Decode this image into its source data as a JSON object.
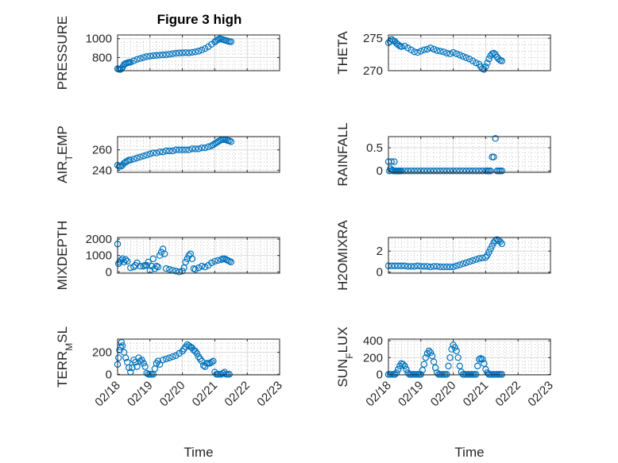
{
  "figure": {
    "title": "Figure 3 high"
  },
  "colors": {
    "series": "#0072BD",
    "axis": "#262626",
    "grid": "#d8d8d8",
    "minor_grid": "#c6c6c6"
  },
  "chart_data": [
    {
      "type": "scatter",
      "title": "Figure 3 high",
      "xlabel": "",
      "ylabel": "PRESSURE",
      "xlim": [
        "02/18",
        "02/23"
      ],
      "ylim": [
        660,
        1040
      ],
      "grid": true,
      "minor_grid": true,
      "y_ticks": [
        800,
        1000
      ],
      "y_tick_labels": [
        "800",
        "1000"
      ],
      "x": [
        0.0,
        0.04,
        0.08,
        0.12,
        0.16,
        0.2,
        0.24,
        0.28,
        0.32,
        0.36,
        0.4,
        0.5,
        0.6,
        0.7,
        0.8,
        0.9,
        1.0,
        1.1,
        1.2,
        1.3,
        1.4,
        1.5,
        1.6,
        1.7,
        1.8,
        1.9,
        2.0,
        2.1,
        2.2,
        2.3,
        2.4,
        2.5,
        2.6,
        2.7,
        2.8,
        2.9,
        3.0,
        3.05,
        3.1,
        3.15,
        3.2,
        3.25,
        3.3,
        3.35,
        3.4,
        3.45,
        3.5
      ],
      "y": [
        680,
        675,
        672,
        680,
        700,
        725,
        735,
        740,
        745,
        748,
        750,
        765,
        780,
        790,
        800,
        810,
        815,
        820,
        822,
        825,
        828,
        830,
        835,
        840,
        845,
        848,
        850,
        852,
        850,
        855,
        860,
        868,
        880,
        895,
        915,
        940,
        965,
        980,
        990,
        1000,
        995,
        990,
        985,
        980,
        975,
        970,
        968
      ]
    },
    {
      "type": "scatter",
      "title": "",
      "xlabel": "",
      "ylabel": "THETA",
      "xlim": [
        "02/18",
        "02/23"
      ],
      "ylim": [
        270,
        275.5
      ],
      "grid": true,
      "minor_grid": true,
      "y_ticks": [
        270,
        275
      ],
      "y_tick_labels": [
        "270",
        "275"
      ],
      "x": [
        0.0,
        0.05,
        0.1,
        0.15,
        0.2,
        0.25,
        0.3,
        0.35,
        0.4,
        0.5,
        0.6,
        0.7,
        0.8,
        0.9,
        1.0,
        1.1,
        1.2,
        1.3,
        1.4,
        1.5,
        1.6,
        1.7,
        1.8,
        1.9,
        2.0,
        2.1,
        2.2,
        2.3,
        2.4,
        2.5,
        2.6,
        2.7,
        2.8,
        2.85,
        2.9,
        2.95,
        3.0,
        3.05,
        3.1,
        3.15,
        3.2,
        3.25,
        3.3,
        3.35,
        3.4,
        3.45,
        3.5
      ],
      "y": [
        274.3,
        274.5,
        274.8,
        274.6,
        274.5,
        274.2,
        274.0,
        273.8,
        273.7,
        273.8,
        273.5,
        273.2,
        272.9,
        272.8,
        273.0,
        273.2,
        273.3,
        273.5,
        273.3,
        273.1,
        273.0,
        272.9,
        272.7,
        272.6,
        272.8,
        272.6,
        272.4,
        272.2,
        272.0,
        271.8,
        271.5,
        271.2,
        271.0,
        270.6,
        270.3,
        270.2,
        270.6,
        271.2,
        271.8,
        272.3,
        272.6,
        272.7,
        272.5,
        272.1,
        271.8,
        271.6,
        271.5
      ]
    },
    {
      "type": "scatter",
      "title": "",
      "xlabel": "",
      "ylabel": "AIR_TEMP",
      "ylabel_main": "AIR",
      "ylabel_sub": "T",
      "ylabel_rest": "EMP",
      "xlim": [
        "02/18",
        "02/23"
      ],
      "ylim": [
        238,
        273
      ],
      "grid": true,
      "minor_grid": true,
      "y_ticks": [
        240,
        260
      ],
      "y_tick_labels": [
        "240",
        "260"
      ],
      "x": [
        0.0,
        0.05,
        0.1,
        0.15,
        0.2,
        0.25,
        0.3,
        0.35,
        0.4,
        0.5,
        0.6,
        0.7,
        0.8,
        0.9,
        1.0,
        1.1,
        1.2,
        1.3,
        1.4,
        1.5,
        1.6,
        1.7,
        1.8,
        1.9,
        2.0,
        2.1,
        2.2,
        2.3,
        2.4,
        2.5,
        2.6,
        2.7,
        2.8,
        2.9,
        2.95,
        3.0,
        3.05,
        3.1,
        3.15,
        3.2,
        3.25,
        3.3,
        3.35,
        3.4,
        3.45,
        3.5
      ],
      "y": [
        245,
        244,
        244,
        245,
        247,
        248,
        249,
        250,
        250,
        251,
        252,
        253,
        254,
        255,
        256,
        257,
        257,
        258,
        258,
        259,
        259,
        259,
        260,
        260,
        260,
        260,
        260,
        261,
        261,
        261,
        262,
        262,
        263,
        264,
        265,
        266,
        267,
        268,
        269,
        270,
        270,
        270,
        270,
        269,
        269,
        268
      ]
    },
    {
      "type": "scatter",
      "title": "",
      "xlabel": "",
      "ylabel": "RAINFALL",
      "xlim": [
        "02/18",
        "02/23"
      ],
      "ylim": [
        -0.03,
        0.74
      ],
      "grid": true,
      "minor_grid": true,
      "y_ticks": [
        0,
        0.5
      ],
      "y_tick_labels": [
        "0",
        "0.5"
      ],
      "x": [
        0.0,
        0.03,
        0.06,
        0.09,
        0.12,
        0.15,
        0.18,
        0.21,
        0.24,
        0.27,
        0.3,
        0.33,
        0.36,
        0.4,
        0.5,
        0.6,
        0.7,
        0.8,
        0.9,
        1.0,
        1.1,
        1.2,
        1.3,
        1.4,
        1.5,
        1.6,
        1.7,
        1.8,
        1.9,
        2.0,
        2.1,
        2.2,
        2.3,
        2.4,
        2.5,
        2.6,
        2.7,
        2.8,
        2.9,
        3.0,
        3.05,
        3.1,
        3.15,
        3.2,
        3.25,
        3.3,
        3.35,
        3.4,
        3.45,
        3.5
      ],
      "y": [
        0.2,
        0.0,
        0.05,
        0.2,
        0.02,
        0.0,
        0.2,
        0.0,
        0.0,
        0.0,
        0.0,
        0.0,
        0.0,
        0.0,
        0.0,
        0.0,
        0.0,
        0.0,
        0.0,
        0.0,
        0.0,
        0.0,
        0.0,
        0.0,
        0.0,
        0.0,
        0.0,
        0.0,
        0.0,
        0.0,
        0.0,
        0.0,
        0.0,
        0.0,
        0.0,
        0.0,
        0.0,
        0.0,
        0.0,
        0.0,
        0.0,
        0.0,
        0.0,
        0.3,
        0.3,
        0.7,
        0.0,
        0.0,
        0.0,
        0.0
      ]
    },
    {
      "type": "scatter",
      "title": "",
      "xlabel": "",
      "ylabel": "MIXDEPTH",
      "xlim": [
        "02/18",
        "02/23"
      ],
      "ylim": [
        -80,
        2100
      ],
      "grid": true,
      "minor_grid": true,
      "y_ticks": [
        0,
        1000,
        2000
      ],
      "y_tick_labels": [
        "0",
        "1000",
        "2000"
      ],
      "x": [
        0.0,
        0.03,
        0.06,
        0.1,
        0.15,
        0.2,
        0.25,
        0.3,
        0.4,
        0.5,
        0.55,
        0.6,
        0.7,
        0.8,
        0.85,
        0.9,
        0.95,
        1.0,
        1.05,
        1.1,
        1.15,
        1.2,
        1.25,
        1.3,
        1.35,
        1.4,
        1.45,
        1.5,
        1.6,
        1.7,
        1.8,
        1.9,
        2.0,
        2.05,
        2.1,
        2.15,
        2.2,
        2.25,
        2.3,
        2.35,
        2.4,
        2.5,
        2.6,
        2.7,
        2.8,
        2.9,
        3.0,
        3.1,
        3.2,
        3.25,
        3.3,
        3.35,
        3.4,
        3.45,
        3.5
      ],
      "y": [
        1700,
        500,
        600,
        700,
        800,
        600,
        750,
        650,
        250,
        300,
        400,
        550,
        350,
        350,
        400,
        400,
        600,
        100,
        350,
        800,
        200,
        350,
        300,
        1000,
        1200,
        1400,
        1100,
        200,
        150,
        100,
        50,
        0,
        50,
        250,
        600,
        800,
        1000,
        1100,
        800,
        200,
        150,
        250,
        350,
        300,
        400,
        550,
        650,
        700,
        750,
        800,
        800,
        750,
        700,
        650,
        600
      ]
    },
    {
      "type": "scatter",
      "title": "",
      "xlabel": "",
      "ylabel": "H2OMIXRA",
      "xlim": [
        "02/18",
        "02/23"
      ],
      "ylim": [
        -0.1,
        3.3
      ],
      "grid": true,
      "minor_grid": true,
      "y_ticks": [
        0,
        2
      ],
      "y_tick_labels": [
        "0",
        "2"
      ],
      "x": [
        0.0,
        0.1,
        0.2,
        0.3,
        0.4,
        0.5,
        0.6,
        0.7,
        0.8,
        0.9,
        1.0,
        1.1,
        1.2,
        1.3,
        1.4,
        1.5,
        1.6,
        1.7,
        1.8,
        1.9,
        2.0,
        2.1,
        2.2,
        2.3,
        2.4,
        2.5,
        2.6,
        2.7,
        2.8,
        2.9,
        3.0,
        3.05,
        3.1,
        3.15,
        3.2,
        3.25,
        3.3,
        3.35,
        3.4,
        3.45,
        3.5
      ],
      "y": [
        0.6,
        0.6,
        0.6,
        0.6,
        0.6,
        0.6,
        0.55,
        0.55,
        0.55,
        0.6,
        0.55,
        0.55,
        0.55,
        0.5,
        0.55,
        0.55,
        0.5,
        0.5,
        0.5,
        0.5,
        0.5,
        0.6,
        0.7,
        0.8,
        0.9,
        1.0,
        1.1,
        1.2,
        1.3,
        1.35,
        1.4,
        1.6,
        1.9,
        2.2,
        2.5,
        2.8,
        3.0,
        3.1,
        3.0,
        2.9,
        2.7
      ]
    },
    {
      "type": "scatter",
      "title": "",
      "xlabel": "Time",
      "ylabel": "TERR_MSL",
      "ylabel_main": "TERR",
      "ylabel_sub": "M",
      "ylabel_rest": "SL",
      "xlim": [
        "02/18",
        "02/23"
      ],
      "ylim": [
        -5,
        320
      ],
      "grid": true,
      "minor_grid": true,
      "y_ticks": [
        0,
        200
      ],
      "y_tick_labels": [
        "0",
        "200"
      ],
      "x_ticks": [
        "02/18",
        "02/19",
        "02/20",
        "02/21",
        "02/22",
        "02/23"
      ],
      "x": [
        0.0,
        0.03,
        0.06,
        0.09,
        0.12,
        0.15,
        0.2,
        0.25,
        0.3,
        0.35,
        0.4,
        0.45,
        0.5,
        0.55,
        0.6,
        0.65,
        0.7,
        0.75,
        0.8,
        0.85,
        0.9,
        0.95,
        1.0,
        1.05,
        1.1,
        1.15,
        1.2,
        1.25,
        1.3,
        1.4,
        1.5,
        1.6,
        1.7,
        1.8,
        1.9,
        2.0,
        2.05,
        2.1,
        2.15,
        2.2,
        2.25,
        2.3,
        2.35,
        2.4,
        2.45,
        2.5,
        2.55,
        2.6,
        2.65,
        2.7,
        2.75,
        2.8,
        2.85,
        2.9,
        2.95,
        3.0,
        3.05,
        3.1,
        3.15,
        3.2,
        3.25,
        3.3,
        3.35,
        3.4,
        3.45
      ],
      "y": [
        90,
        150,
        220,
        250,
        290,
        260,
        200,
        150,
        110,
        60,
        20,
        60,
        130,
        110,
        70,
        150,
        120,
        130,
        100,
        70,
        10,
        0,
        0,
        0,
        0,
        50,
        100,
        120,
        90,
        130,
        140,
        150,
        160,
        170,
        190,
        210,
        230,
        250,
        270,
        260,
        250,
        240,
        220,
        210,
        190,
        160,
        140,
        120,
        80,
        70,
        100,
        100,
        100,
        110,
        120,
        20,
        0,
        0,
        0,
        0,
        10,
        20,
        0,
        0,
        0
      ]
    },
    {
      "type": "scatter",
      "title": "",
      "xlabel": "Time",
      "ylabel": "SUN_FLUX",
      "ylabel_main": "SUN",
      "ylabel_sub": "F",
      "ylabel_rest": "LUX",
      "xlim": [
        "02/18",
        "02/23"
      ],
      "ylim": [
        -5,
        420
      ],
      "grid": true,
      "minor_grid": true,
      "y_ticks": [
        0,
        200,
        400
      ],
      "y_tick_labels": [
        "0",
        "200",
        "400"
      ],
      "x_ticks": [
        "02/18",
        "02/19",
        "02/20",
        "02/21",
        "02/22",
        "02/23"
      ],
      "x": [
        0.0,
        0.05,
        0.1,
        0.15,
        0.2,
        0.25,
        0.3,
        0.35,
        0.4,
        0.45,
        0.5,
        0.55,
        0.6,
        0.65,
        0.7,
        0.75,
        0.8,
        0.85,
        0.9,
        0.95,
        1.0,
        1.05,
        1.1,
        1.15,
        1.2,
        1.25,
        1.3,
        1.35,
        1.4,
        1.45,
        1.5,
        1.55,
        1.6,
        1.65,
        1.7,
        1.75,
        1.8,
        1.85,
        1.9,
        1.95,
        2.0,
        2.05,
        2.1,
        2.15,
        2.2,
        2.25,
        2.3,
        2.35,
        2.4,
        2.45,
        2.5,
        2.55,
        2.6,
        2.65,
        2.7,
        2.75,
        2.8,
        2.85,
        2.9,
        2.95,
        3.0,
        3.05,
        3.1,
        3.15,
        3.2,
        3.25,
        3.3,
        3.35,
        3.4,
        3.45,
        3.5
      ],
      "y": [
        0,
        0,
        0,
        0,
        0,
        20,
        60,
        100,
        130,
        120,
        100,
        60,
        20,
        0,
        0,
        0,
        0,
        0,
        0,
        0,
        0,
        50,
        120,
        200,
        250,
        280,
        260,
        220,
        150,
        80,
        20,
        0,
        0,
        0,
        0,
        0,
        0,
        100,
        200,
        300,
        350,
        320,
        280,
        200,
        100,
        30,
        0,
        0,
        0,
        0,
        0,
        0,
        0,
        0,
        0,
        100,
        180,
        190,
        180,
        130,
        60,
        20,
        0,
        0,
        0,
        0,
        0,
        0,
        0,
        0,
        0
      ]
    }
  ]
}
